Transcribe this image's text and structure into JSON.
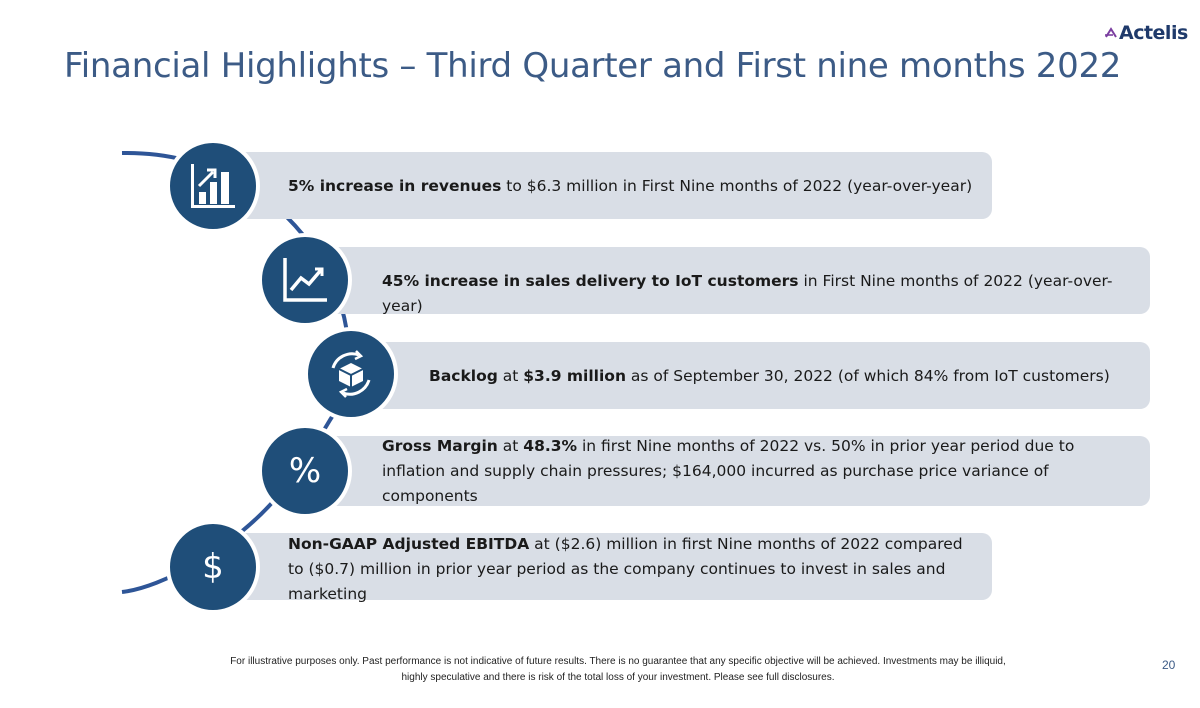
{
  "header": {
    "title": "Financial Highlights – Third Quarter and First nine months 2022",
    "logo_text": "Actelis"
  },
  "highlights": [
    {
      "icon": "bar-chart-up-icon",
      "bold": "5% increase in revenues",
      "rest": " to $6.3 million in First Nine months of 2022 (year-over-year)"
    },
    {
      "icon": "line-chart-up-icon",
      "bold": "45% increase in sales delivery to IoT customers",
      "rest": " in First Nine months of 2022 (year-over-year)"
    },
    {
      "icon": "box-cycle-icon",
      "bold": "Backlog",
      "mid": " at ",
      "bold2": "$3.9 million",
      "rest": " as of September 30, 2022 (of which 84% from IoT customers)"
    },
    {
      "icon": "percent-icon",
      "glyph": "%",
      "bold": "Gross Margin",
      "mid": " at ",
      "bold2": "48.3%",
      "rest": " in first Nine months of 2022 vs. 50% in prior year period due to inflation and supply chain pressures; $164,000 incurred as purchase price variance of components"
    },
    {
      "icon": "dollar-icon",
      "glyph": "$",
      "bold": "Non-GAAP Adjusted EBITDA",
      "rest": " at ($2.6) million in first Nine months of 2022 compared to ($0.7) million in prior year period as the company continues to invest in sales and marketing"
    }
  ],
  "footer": {
    "disclaimer": "For illustrative purposes only. Past performance is not indicative of future results.  There is no guarantee that any specific objective will be achieved.  Investments may be illiquid, highly speculative and there is risk of the total loss of your investment.  Please see full disclosures.",
    "page_number": "20"
  },
  "colors": {
    "title": "#3c5b86",
    "circle": "#1f4e79",
    "bar": "#d9dee6",
    "arc": "#2e5597"
  }
}
